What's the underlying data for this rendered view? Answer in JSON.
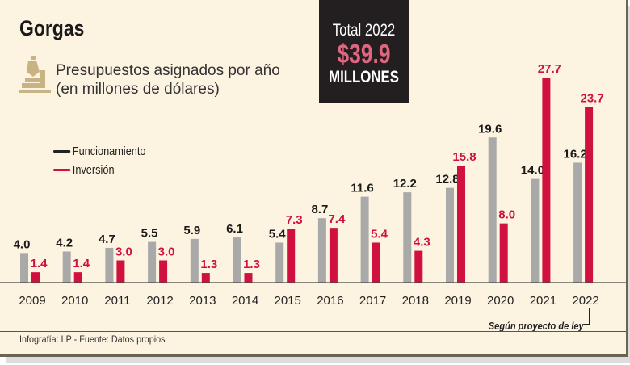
{
  "header": {
    "title": "Gorgas",
    "subtitle_line1": "Presupuestos asignados por año",
    "subtitle_line2": "(en millones de dólares)"
  },
  "total": {
    "label": "Total 2022",
    "value": "$39.9",
    "unit": "MILLONES"
  },
  "note": "Según proyecto de ley",
  "source": "Infografía: LP - Fuente: Datos propios",
  "colors": {
    "funcionamiento": "#a9a9a9",
    "inversion": "#d0103f",
    "background": "#fdf3e1"
  },
  "chart_data": {
    "type": "bar",
    "categories": [
      "2009",
      "2010",
      "2011",
      "2012",
      "2013",
      "2014",
      "2015",
      "2016",
      "2017",
      "2018",
      "2019",
      "2020",
      "2021",
      "2022"
    ],
    "series": [
      {
        "name": "Funcionamiento",
        "values": [
          4.0,
          4.2,
          4.7,
          5.5,
          5.9,
          6.1,
          5.4,
          8.7,
          11.6,
          12.2,
          12.8,
          19.6,
          14.0,
          16.2
        ]
      },
      {
        "name": "Inversión",
        "values": [
          1.4,
          1.4,
          3.0,
          3.0,
          1.3,
          1.3,
          7.3,
          7.4,
          5.4,
          4.3,
          15.8,
          8.0,
          27.7,
          23.7
        ]
      }
    ],
    "labels": {
      "Funcionamiento": [
        "4.0",
        "4.2",
        "4.7",
        "5.5",
        "5.9",
        "6.1",
        "5.4",
        "8.7",
        "11.6",
        "12.2",
        "12.8",
        "19.6",
        "14.0",
        "16.2"
      ],
      "Inversión": [
        "1.4",
        "1.4",
        "3.0",
        "3.0",
        "1.3",
        "1.3",
        "7.3",
        "7.4",
        "5.4",
        "4.3",
        "15.8",
        "8.0",
        "27.7",
        "23.7"
      ]
    },
    "legend_position": "top-left",
    "grid": false
  }
}
